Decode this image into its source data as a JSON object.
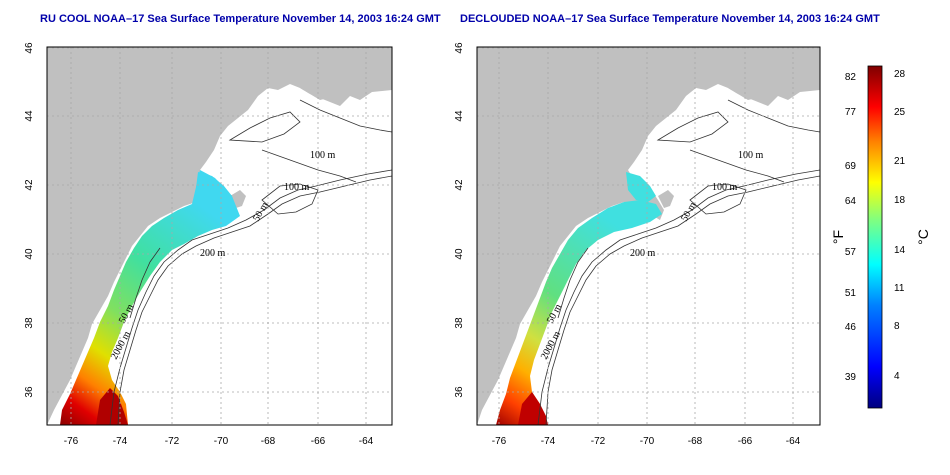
{
  "maps": [
    {
      "title": "RU COOL NOAA–17 Sea Surface Temperature November 14, 2003 16:24 GMT",
      "lon_ticks": [
        "-76",
        "-74",
        "-72",
        "-70",
        "-68",
        "-66",
        "-64"
      ],
      "lat_ticks": [
        "46",
        "44",
        "42",
        "40",
        "38",
        "36"
      ],
      "contour_labels": [
        "100 m",
        "100 m",
        "50 m",
        "200 m",
        "50 m",
        "2000 m"
      ]
    },
    {
      "title": "DECLOUDED NOAA–17 Sea Surface Temperature November 14, 2003 16:24 GMT",
      "lon_ticks": [
        "-76",
        "-74",
        "-72",
        "-70",
        "-68",
        "-66",
        "-64"
      ],
      "lat_ticks": [
        "46",
        "44",
        "42",
        "40",
        "38",
        "36"
      ],
      "contour_labels": [
        "100 m",
        "100 m",
        "50 m",
        "200 m",
        "50 m",
        "2000 m"
      ]
    }
  ],
  "colorbar": {
    "fahrenheit_ticks": [
      "82",
      "77",
      "69",
      "64",
      "57",
      "51",
      "46",
      "39"
    ],
    "celsius_ticks": [
      "28",
      "25",
      "21",
      "18",
      "14",
      "11",
      "8",
      "4"
    ],
    "fahrenheit_unit": "°F",
    "celsius_unit": "°C",
    "colors": [
      "#00007f",
      "#0000ff",
      "#0080ff",
      "#00ffff",
      "#80ff80",
      "#ffff00",
      "#ff8000",
      "#ff0000",
      "#7f0000"
    ]
  },
  "colors": {
    "land": "#c0c0c0",
    "ocean": "#ffffff",
    "grid": "#a8a8a8",
    "title": "#0000aa"
  }
}
